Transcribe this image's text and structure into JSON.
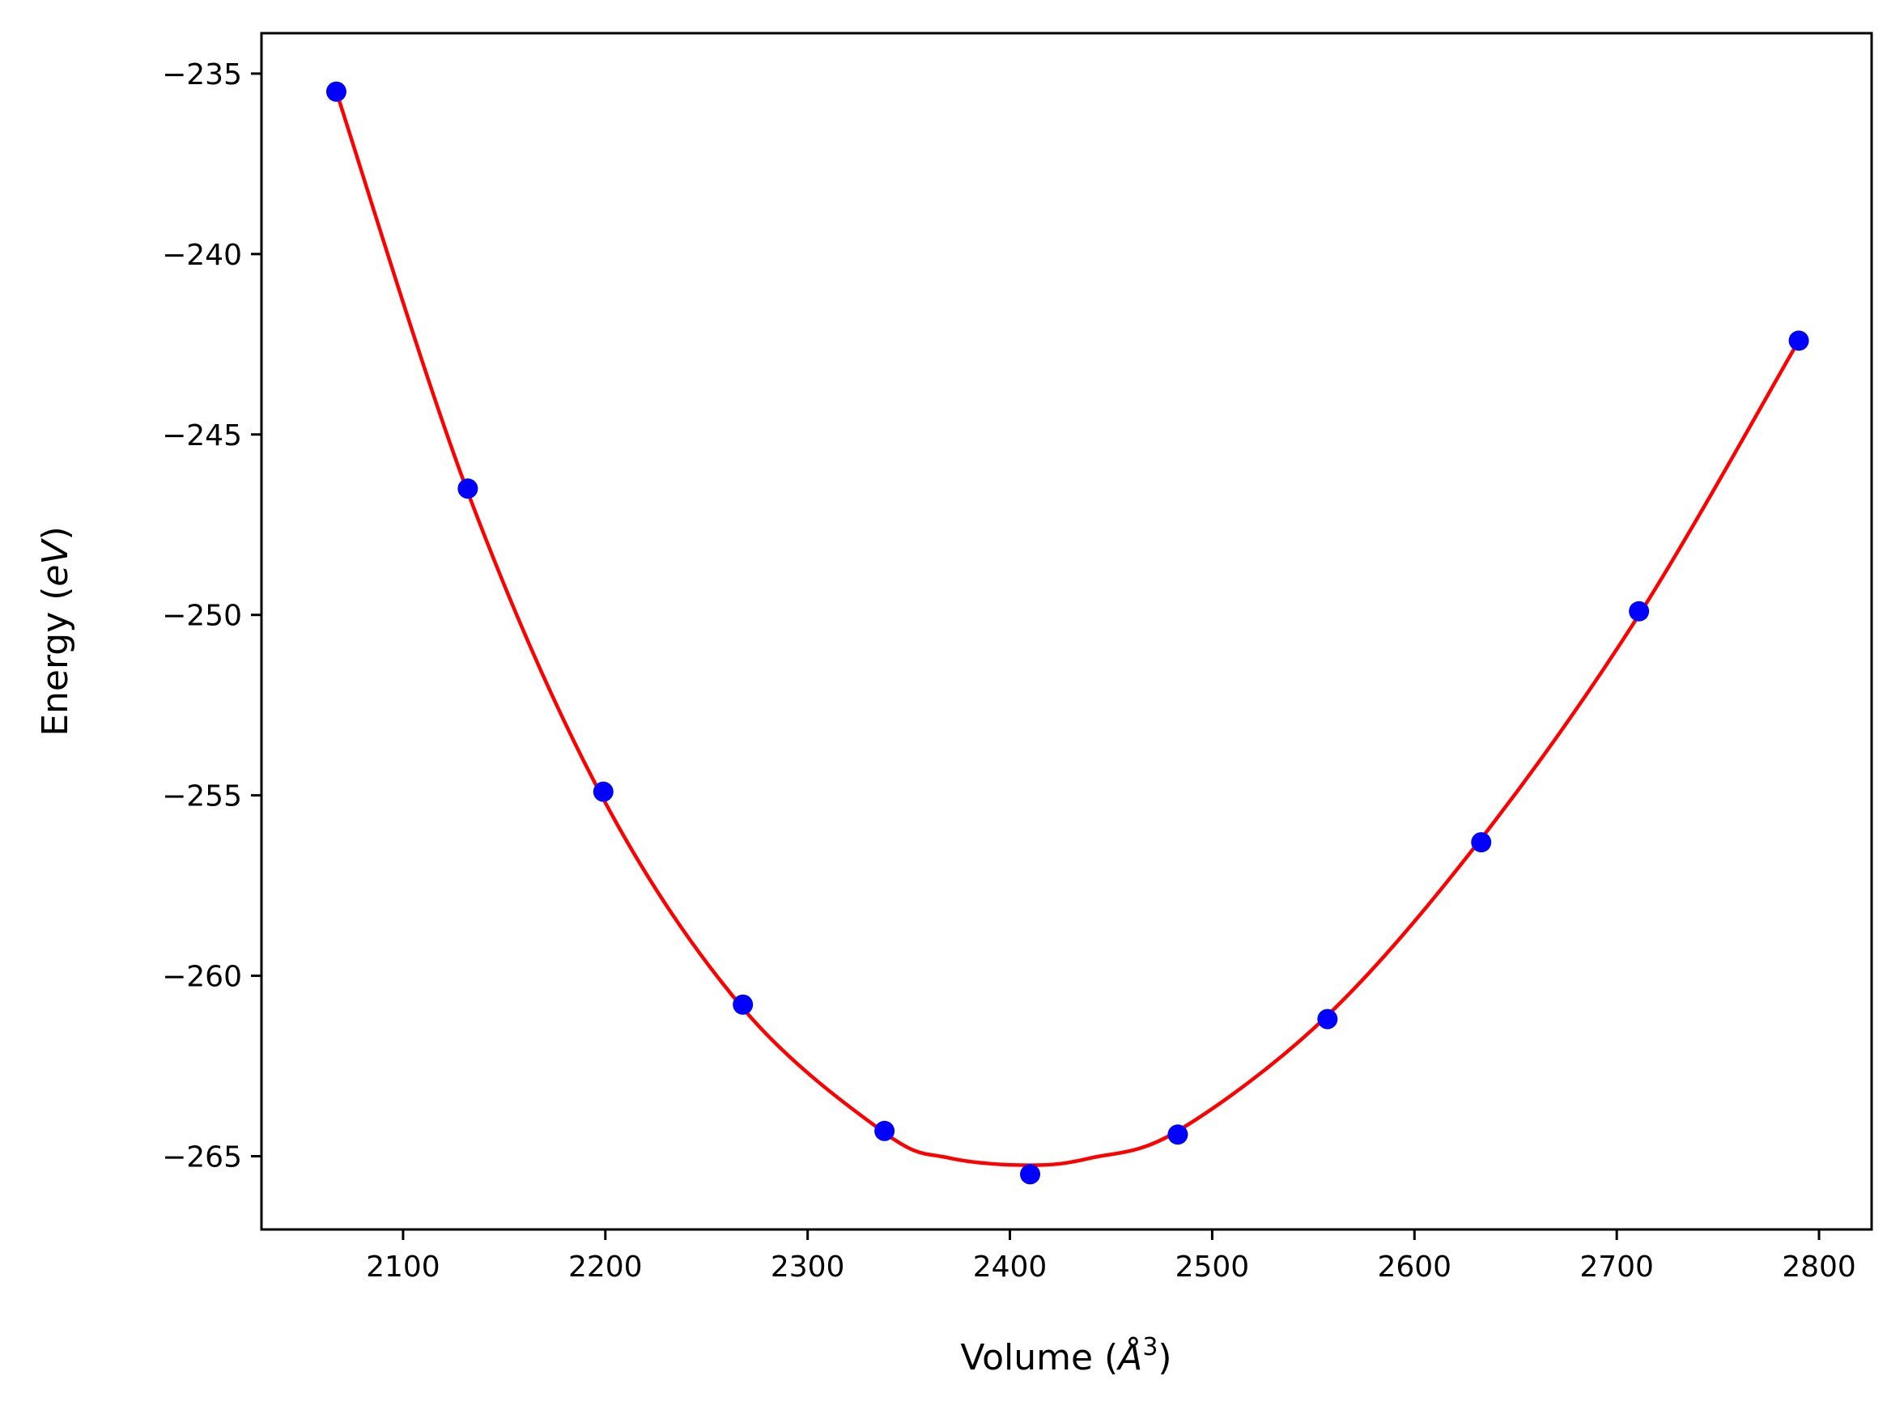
{
  "chart_data": {
    "type": "scatter",
    "xlabel": "Volume ($\\AA^3$)",
    "xlabel_parts": {
      "pre": "Volume (",
      "sym": "Å",
      "sup": "3",
      "post": ")"
    },
    "ylabel": "Energy ($eV$)",
    "ylabel_parts": {
      "pre": "Energy (",
      "ital": "eV",
      "post": ")"
    },
    "xlim": [
      2030,
      2826
    ],
    "ylim": [
      -267.03,
      -233.88
    ],
    "xticks": [
      2100,
      2200,
      2300,
      2400,
      2500,
      2600,
      2700,
      2800
    ],
    "yticks": [
      -235,
      -240,
      -245,
      -250,
      -255,
      -260,
      -265
    ],
    "ytick_labels": [
      "−235",
      "−240",
      "−245",
      "−250",
      "−255",
      "−260",
      "−265"
    ],
    "grid": false,
    "series": [
      {
        "kind": "points",
        "color": "#0000ff",
        "x": [
          2067,
          2132,
          2199,
          2268,
          2338,
          2410,
          2483,
          2557,
          2633,
          2711,
          2790
        ],
        "y": [
          -235.5,
          -246.5,
          -254.9,
          -260.8,
          -264.3,
          -265.5,
          -264.4,
          -261.2,
          -256.3,
          -249.9,
          -242.4
        ]
      },
      {
        "kind": "fit",
        "color": "#ff0000",
        "x": [
          2067,
          2132,
          2199,
          2268,
          2338,
          2370,
          2410,
          2440,
          2483,
          2557,
          2633,
          2711,
          2790
        ],
        "y": [
          -235.5,
          -246.6,
          -255.1,
          -260.9,
          -264.35,
          -265.05,
          -265.25,
          -265.05,
          -264.3,
          -261.1,
          -256.2,
          -250.0,
          -242.4
        ]
      }
    ]
  }
}
